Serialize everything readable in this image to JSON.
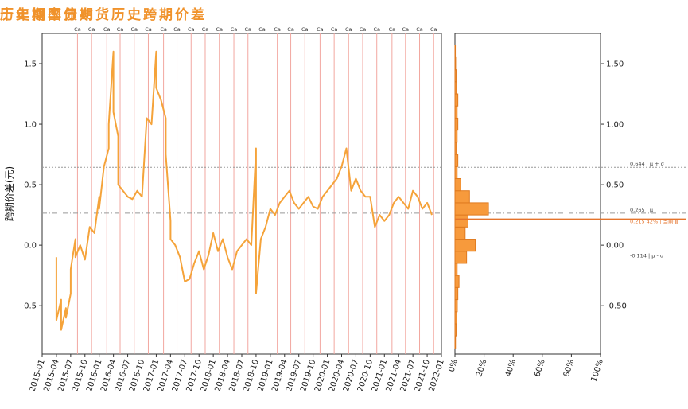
{
  "titles": {
    "main": "十年期国债期货历史跨期价差",
    "hist": "历史概率分布"
  },
  "colors": {
    "line": "#f5a33a",
    "vline": "#f2a7a0",
    "hist_fill": "#f79a3c",
    "hist_stroke": "#e07a1f",
    "current": "#e5742c",
    "ref": "#999999"
  },
  "chart_data": [
    {
      "type": "line",
      "title": "十年期国债期货历史跨期价差",
      "ylabel": "跨期价差(元)",
      "xlabel": "",
      "ylim": [
        -0.9,
        1.75
      ],
      "yticks": [
        "1.5",
        "1.0",
        "0.5",
        "0.0",
        "-0.5"
      ],
      "xticks": [
        "2015-01",
        "2015-04",
        "2015-07",
        "2015-10",
        "2016-01",
        "2016-04",
        "2016-07",
        "2016-10",
        "2017-01",
        "2017-04",
        "2017-07",
        "2017-10",
        "2018-01",
        "2018-04",
        "2018-07",
        "2018-10",
        "2019-01",
        "2019-04",
        "2019-07",
        "2019-10",
        "2020-01",
        "2020-04",
        "2020-07",
        "2020-10",
        "2021-01",
        "2021-04",
        "2021-07",
        "2021-10",
        "2022-01"
      ],
      "xlim": [
        "2015-01",
        "2022-01"
      ],
      "grid": false,
      "series": [
        {
          "name": "",
          "x": [
            "2015-04",
            "2015-04",
            "2015-05",
            "2015-05",
            "2015-06",
            "2015-06",
            "2015-07",
            "2015-07",
            "2015-08",
            "2015-08",
            "2015-09",
            "2015-10",
            "2015-11",
            "2015-12",
            "2016-01",
            "2016-01",
            "2016-02",
            "2016-03",
            "2016-03",
            "2016-04",
            "2016-04",
            "2016-05",
            "2016-05",
            "2016-06",
            "2016-07",
            "2016-08",
            "2016-09",
            "2016-10",
            "2016-11",
            "2016-12",
            "2017-01",
            "2017-01",
            "2017-02",
            "2017-03",
            "2017-03",
            "2017-04",
            "2017-04",
            "2017-05",
            "2017-06",
            "2017-07",
            "2017-08",
            "2017-09",
            "2017-10",
            "2017-11",
            "2017-12",
            "2018-01",
            "2018-02",
            "2018-03",
            "2018-04",
            "2018-05",
            "2018-06",
            "2018-07",
            "2018-08",
            "2018-09",
            "2018-10",
            "2018-10",
            "2018-11",
            "2018-12",
            "2019-01",
            "2019-02",
            "2019-03",
            "2019-04",
            "2019-05",
            "2019-06",
            "2019-07",
            "2019-08",
            "2019-09",
            "2019-10",
            "2019-11",
            "2019-12",
            "2020-01",
            "2020-02",
            "2020-03",
            "2020-04",
            "2020-05",
            "2020-06",
            "2020-07",
            "2020-08",
            "2020-09",
            "2020-10",
            "2020-11",
            "2020-12",
            "2021-01",
            "2021-02",
            "2021-03",
            "2021-04",
            "2021-05",
            "2021-06",
            "2021-07",
            "2021-08",
            "2021-09",
            "2021-10",
            "2021-11"
          ],
          "y": [
            -0.1,
            -0.62,
            -0.45,
            -0.7,
            -0.52,
            -0.6,
            -0.4,
            -0.2,
            0.05,
            -0.1,
            0.0,
            -0.12,
            0.15,
            0.1,
            0.4,
            0.3,
            0.65,
            0.8,
            1.0,
            1.6,
            1.1,
            0.9,
            0.5,
            0.45,
            0.4,
            0.38,
            0.45,
            0.4,
            1.05,
            1.0,
            1.6,
            1.3,
            1.2,
            1.05,
            0.75,
            0.2,
            0.05,
            0.0,
            -0.1,
            -0.3,
            -0.28,
            -0.15,
            -0.05,
            -0.2,
            -0.08,
            0.1,
            -0.05,
            0.05,
            -0.1,
            -0.2,
            -0.05,
            0.0,
            0.05,
            0.0,
            0.8,
            -0.4,
            0.05,
            0.15,
            0.3,
            0.25,
            0.35,
            0.4,
            0.45,
            0.35,
            0.3,
            0.35,
            0.4,
            0.32,
            0.3,
            0.4,
            0.45,
            0.5,
            0.55,
            0.65,
            0.8,
            0.45,
            0.55,
            0.45,
            0.4,
            0.4,
            0.15,
            0.25,
            0.2,
            0.25,
            0.35,
            0.4,
            0.35,
            0.3,
            0.45,
            0.4,
            0.3,
            0.35,
            0.25
          ]
        }
      ],
      "vlines": [
        "2015-08-14",
        "2015-11-13",
        "2016-02-19",
        "2016-05-13",
        "2016-08-12",
        "2016-11-11",
        "2017-02-17",
        "2017-05-12",
        "2017-08-11",
        "2017-11-10",
        "2018-02-09",
        "2018-05-11",
        "2018-08-10",
        "2018-11-09",
        "2019-02-15",
        "2019-05-10",
        "2019-08-09",
        "2019-11-15",
        "2020-02-14",
        "2020-05-15",
        "2020-08-14",
        "2020-11-13",
        "2021-02-19",
        "2021-05-14",
        "2021-08-13",
        "2021-11-12"
      ],
      "hlines": [
        0.644,
        0.265,
        -0.114
      ],
      "marker": "Ca"
    },
    {
      "type": "bar",
      "orientation": "horizontal",
      "title": "历史概率分布",
      "xlim": [
        0,
        100
      ],
      "xticks": [
        "0%",
        "20%",
        "40%",
        "60%",
        "80%",
        "100%"
      ],
      "yticks": [
        "1.50",
        "1.00",
        "0.50",
        "0.00",
        "-0.50"
      ],
      "bins_from": -0.85,
      "bin_width": 0.1,
      "values": [
        0.4,
        0.8,
        1.2,
        1.6,
        2.0,
        2.8,
        1.5,
        8.0,
        14.0,
        7.0,
        9.0,
        23.0,
        10.0,
        4.0,
        1.5,
        2.0,
        1.0,
        1.5,
        2.0,
        1.5,
        2.0,
        1.0,
        0.8,
        0.5,
        0.3
      ],
      "annotations": [
        {
          "y": 0.644,
          "label": "0.644 | μ + σ"
        },
        {
          "y": 0.265,
          "label": "0.265 | μ"
        },
        {
          "y": 0.215,
          "label": "0.215 42% | 当前值"
        },
        {
          "y": -0.114,
          "label": "-0.114 | μ - σ"
        }
      ]
    }
  ]
}
